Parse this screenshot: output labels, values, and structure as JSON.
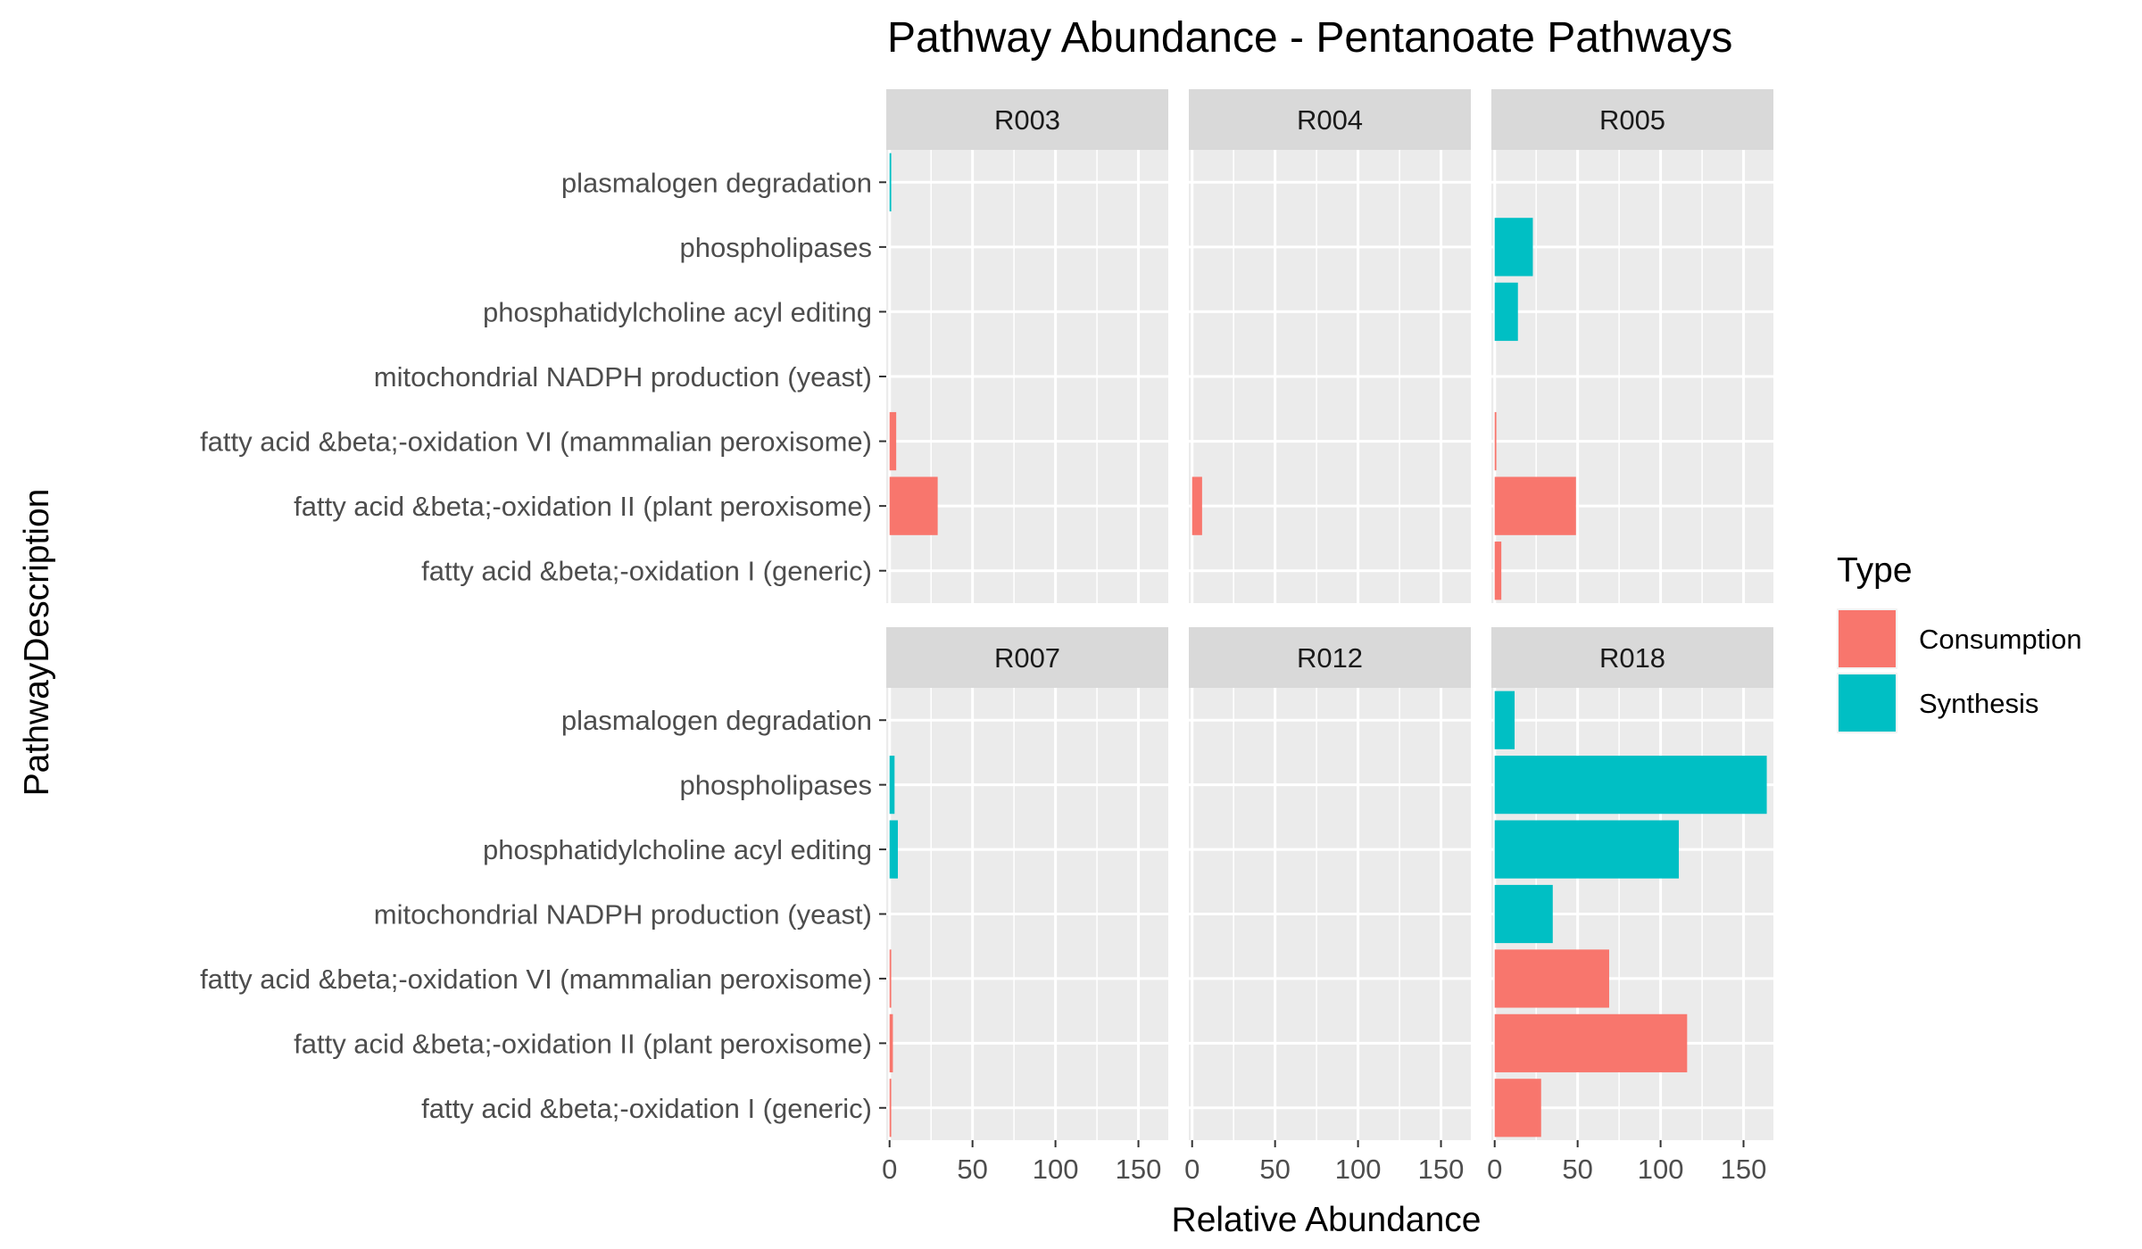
{
  "chart_data": {
    "type": "bar",
    "orientation": "horizontal",
    "title": "Pathway Abundance - Pentanoate Pathways",
    "xlabel": "Relative Abundance",
    "ylabel": "PathwayDescription",
    "xlim": [
      -2,
      168
    ],
    "x_ticks": [
      0,
      50,
      100,
      150
    ],
    "grid": true,
    "categories": [
      "plasmalogen degradation",
      "phospholipases",
      "phosphatidylcholine acyl editing",
      "mitochondrial NADPH production (yeast)",
      "fatty acid &beta;-oxidation VI (mammalian peroxisome)",
      "fatty acid &beta;-oxidation II (plant peroxisome)",
      "fatty acid &beta;-oxidation I (generic)"
    ],
    "legend": {
      "title": "Type",
      "position": "right",
      "entries": [
        {
          "name": "Consumption",
          "color": "#F8766D"
        },
        {
          "name": "Synthesis",
          "color": "#00BFC4"
        }
      ]
    },
    "panels": [
      {
        "label": "R003",
        "values": [
          {
            "category": "plasmalogen degradation",
            "value": 1,
            "type": "Synthesis"
          },
          {
            "category": "fatty acid &beta;-oxidation VI (mammalian peroxisome)",
            "value": 4,
            "type": "Consumption"
          },
          {
            "category": "fatty acid &beta;-oxidation II (plant peroxisome)",
            "value": 29,
            "type": "Consumption"
          }
        ]
      },
      {
        "label": "R004",
        "values": [
          {
            "category": "fatty acid &beta;-oxidation II (plant peroxisome)",
            "value": 6,
            "type": "Consumption"
          }
        ]
      },
      {
        "label": "R005",
        "values": [
          {
            "category": "phospholipases",
            "value": 23,
            "type": "Synthesis"
          },
          {
            "category": "phosphatidylcholine acyl editing",
            "value": 14,
            "type": "Synthesis"
          },
          {
            "category": "fatty acid &beta;-oxidation VI (mammalian peroxisome)",
            "value": 1,
            "type": "Consumption"
          },
          {
            "category": "fatty acid &beta;-oxidation II (plant peroxisome)",
            "value": 49,
            "type": "Consumption"
          },
          {
            "category": "fatty acid &beta;-oxidation I (generic)",
            "value": 4,
            "type": "Consumption"
          }
        ]
      },
      {
        "label": "R007",
        "values": [
          {
            "category": "phospholipases",
            "value": 3,
            "type": "Synthesis"
          },
          {
            "category": "phosphatidylcholine acyl editing",
            "value": 5,
            "type": "Synthesis"
          },
          {
            "category": "fatty acid &beta;-oxidation VI (mammalian peroxisome)",
            "value": 1,
            "type": "Consumption"
          },
          {
            "category": "fatty acid &beta;-oxidation II (plant peroxisome)",
            "value": 2,
            "type": "Consumption"
          },
          {
            "category": "fatty acid &beta;-oxidation I (generic)",
            "value": 1,
            "type": "Consumption"
          }
        ]
      },
      {
        "label": "R012",
        "values": []
      },
      {
        "label": "R018",
        "values": [
          {
            "category": "plasmalogen degradation",
            "value": 12,
            "type": "Synthesis"
          },
          {
            "category": "phospholipases",
            "value": 164,
            "type": "Synthesis"
          },
          {
            "category": "phosphatidylcholine acyl editing",
            "value": 111,
            "type": "Synthesis"
          },
          {
            "category": "mitochondrial NADPH production (yeast)",
            "value": 35,
            "type": "Synthesis"
          },
          {
            "category": "fatty acid &beta;-oxidation VI (mammalian peroxisome)",
            "value": 69,
            "type": "Consumption"
          },
          {
            "category": "fatty acid &beta;-oxidation II (plant peroxisome)",
            "value": 116,
            "type": "Consumption"
          },
          {
            "category": "fatty acid &beta;-oxidation I (generic)",
            "value": 28,
            "type": "Consumption"
          }
        ]
      }
    ]
  }
}
